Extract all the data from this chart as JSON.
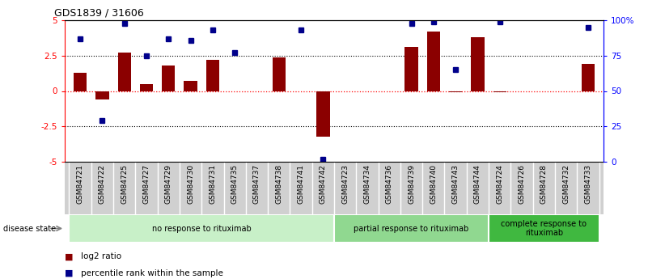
{
  "title": "GDS1839 / 31606",
  "samples": [
    "GSM84721",
    "GSM84722",
    "GSM84725",
    "GSM84727",
    "GSM84729",
    "GSM84730",
    "GSM84731",
    "GSM84735",
    "GSM84737",
    "GSM84738",
    "GSM84741",
    "GSM84742",
    "GSM84723",
    "GSM84734",
    "GSM84736",
    "GSM84739",
    "GSM84740",
    "GSM84743",
    "GSM84744",
    "GSM84724",
    "GSM84726",
    "GSM84728",
    "GSM84732",
    "GSM84733"
  ],
  "log2_ratio": [
    1.3,
    -0.6,
    2.7,
    0.5,
    1.8,
    0.7,
    2.2,
    0.0,
    0.0,
    2.4,
    0.0,
    -3.2,
    0.0,
    0.0,
    0.0,
    3.1,
    4.2,
    -0.1,
    3.8,
    -0.1,
    0.0,
    0.0,
    0.0,
    1.9
  ],
  "percentile_mapped": [
    3.7,
    -2.1,
    4.8,
    2.5,
    3.7,
    3.6,
    4.3,
    2.7,
    null,
    null,
    4.3,
    -4.85,
    null,
    null,
    null,
    4.8,
    4.9,
    1.5,
    null,
    4.9,
    null,
    null,
    null,
    4.5
  ],
  "groups": [
    {
      "label": "no response to rituximab",
      "start": 0,
      "end": 11,
      "color": "#c8f0c8"
    },
    {
      "label": "partial response to rituximab",
      "start": 12,
      "end": 18,
      "color": "#90d890"
    },
    {
      "label": "complete response to\nrituximab",
      "start": 19,
      "end": 23,
      "color": "#40b840"
    }
  ],
  "ylim": [
    -5,
    5
  ],
  "bar_color": "#8b0000",
  "dot_color": "#00008b",
  "background_color": "#ffffff",
  "legend_label_bar": "log2 ratio",
  "legend_label_dot": "percentile rank within the sample"
}
